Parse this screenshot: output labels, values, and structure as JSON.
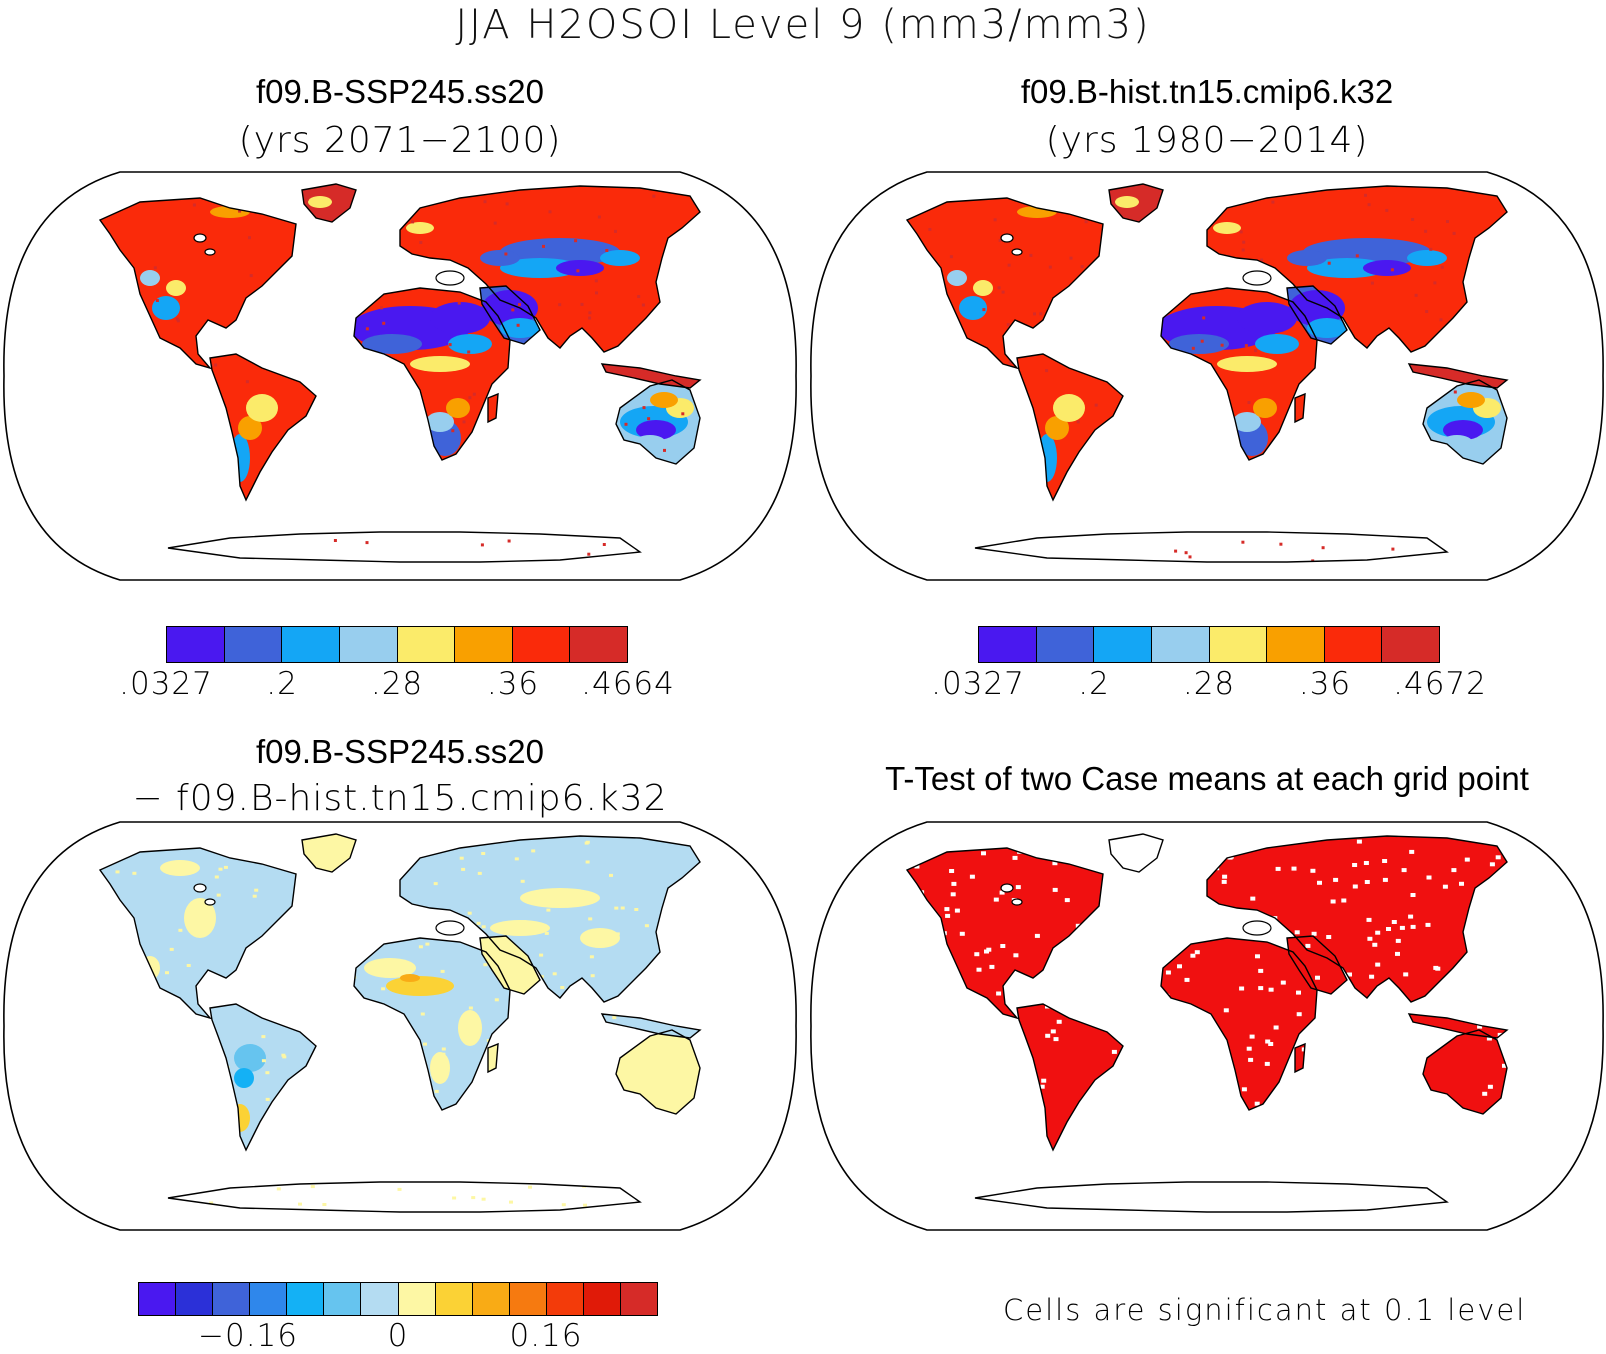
{
  "title": "JJA H2OSOI Level 9 (mm3/mm3)",
  "colors": {
    "levels_8": [
      "#4a18f0",
      "#3f63d9",
      "#14a6f5",
      "#98ceee",
      "#fbeb6a",
      "#f9a000",
      "#fa2a0a",
      "#d62b28"
    ],
    "levels_14": [
      "#4a18f0",
      "#2b30d8",
      "#3f63d9",
      "#2f87eb",
      "#14b1f5",
      "#66c4ef",
      "#b4dcf2",
      "#fdf7a4",
      "#fbd235",
      "#f9ab15",
      "#f67a10",
      "#f33b0a",
      "#e01a08",
      "#d62b28"
    ],
    "significant": "#f01010",
    "coast": "#000000"
  },
  "panels": [
    {
      "name": "panel-case1",
      "title": "f09.B-SSP245.ss20",
      "subtitle": "(yrs 2071−2100)",
      "colorbar_labels": [
        ".0327",
        ".2",
        ".28",
        ".36",
        ".4664"
      ]
    },
    {
      "name": "panel-case2",
      "title": "f09.B-hist.tn15.cmip6.k32",
      "subtitle": "(yrs 1980−2014)",
      "colorbar_labels": [
        ".0327",
        ".2",
        ".28",
        ".36",
        ".4672"
      ]
    },
    {
      "name": "panel-difference",
      "title": "f09.B-SSP245.ss20",
      "subtitle": "− f09.B-hist.tn15.cmip6.k32",
      "colorbar_labels": [
        "−0.16",
        "0",
        "0.16"
      ]
    },
    {
      "name": "panel-ttest",
      "title": "T-Test of two Case means at each grid point",
      "footnote": "Cells are significant at 0.1 level"
    }
  ]
}
